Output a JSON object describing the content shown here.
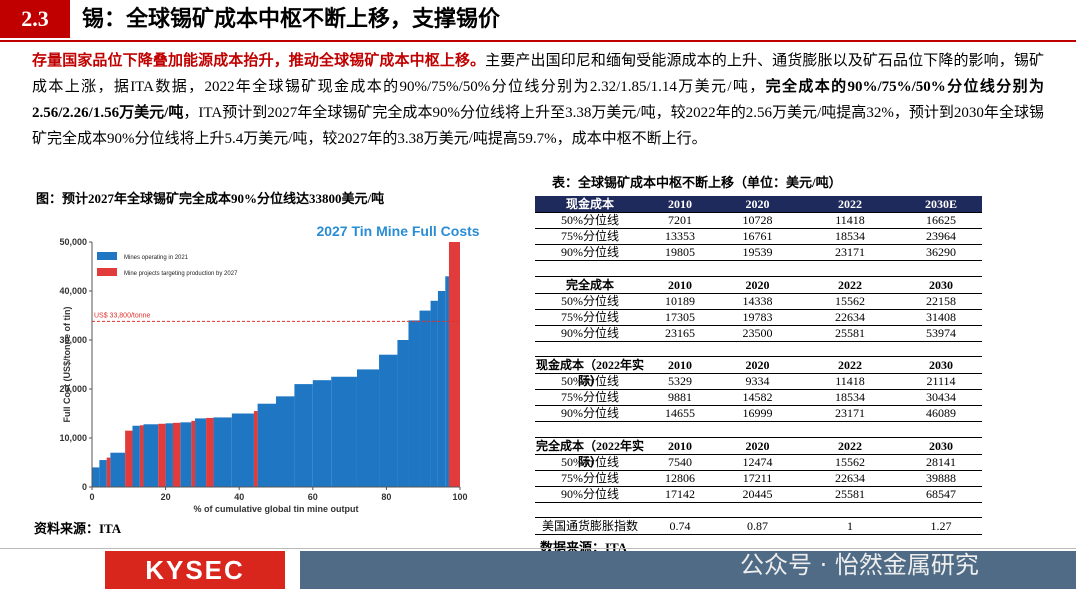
{
  "header": {
    "section": "2.3",
    "title": "锡：全球锡矿成本中枢不断上移，支撑锡价"
  },
  "paragraph": [
    {
      "text": "存量国家品位下降叠加能源成本抬升，推动全球锡矿成本中枢上移。",
      "style": "red-bold"
    },
    {
      "text": "主要产出国印尼和缅甸受能源成本的上升、通货膨胀以及矿石品位下降的影响，锡矿成本上涨，据ITA数据，2022年全球锡矿现金成本的90%/75%/50%分位线分别为2.32/1.85/1.14万美元/吨，",
      "style": "normal"
    },
    {
      "text": "完全成本的90%/75%/50%分位线分别为2.56/2.26/1.56万美元/吨",
      "style": "bold"
    },
    {
      "text": "，ITA预计到2027年全球锡矿完全成本90%分位线将上升至3.38万美元/吨，较2022年的2.56万美元/吨提高32%，预计到2030年全球锡矿完全成本90%分位线将上升5.4万美元/吨，较2027年的3.38万美元/吨提高59.7%，成本中枢不断上行。",
      "style": "normal"
    }
  ],
  "figure": {
    "caption": "图：预计2027年全球锡矿完全成本90%分位线达33800美元/吨",
    "source": "资料来源：ITA"
  },
  "chart_data": {
    "type": "bar",
    "title": "2027 Tin Mine Full Costs",
    "y_label": "Full Cost (US$/tonne of tin)",
    "x_label": "% of cumulative global tin mine output",
    "annotation": {
      "text": "US$ 33,800/tonne",
      "value": 33800,
      "color": "#e0302a"
    },
    "xlim": [
      0,
      100
    ],
    "xticks": [
      0,
      20,
      40,
      60,
      80,
      100
    ],
    "ylim": [
      0,
      50000
    ],
    "yticks": [
      0,
      {
        "value": 10000,
        "label": "10,000"
      },
      {
        "value": 20000,
        "label": "20,000"
      },
      {
        "value": 30000,
        "label": "30,000"
      },
      {
        "value": 40000,
        "label": "40,000"
      },
      {
        "value": 50000,
        "label": "50,000"
      }
    ],
    "series": [
      {
        "name": "Mines operating in 2021",
        "color": "#1f77c4",
        "x_start": [
          0,
          2,
          5,
          11,
          14,
          20,
          24,
          28,
          33,
          38,
          45,
          50,
          55,
          60,
          65,
          72,
          78,
          83,
          86,
          89,
          92,
          94,
          96
        ],
        "x_end": [
          2,
          4,
          9,
          13,
          18,
          22,
          27,
          31,
          38,
          44,
          50,
          55,
          60,
          65,
          72,
          78,
          83,
          86,
          89,
          92,
          94,
          96,
          97
        ],
        "values": [
          4000,
          5500,
          7000,
          12500,
          12800,
          13000,
          13200,
          14000,
          14200,
          15000,
          17000,
          18500,
          21000,
          21800,
          22500,
          24000,
          27000,
          30000,
          34000,
          36000,
          38000,
          40000,
          43000
        ]
      },
      {
        "name": "Mine projects targeting production by 2027",
        "color": "#e23b3b",
        "x_start": [
          4,
          9,
          13,
          18,
          22,
          27,
          31,
          44,
          97
        ],
        "x_end": [
          5,
          11,
          14,
          20,
          24,
          28,
          33,
          45,
          100
        ],
        "values": [
          6000,
          11500,
          12600,
          12900,
          13100,
          13500,
          14100,
          15500,
          50000
        ]
      }
    ]
  },
  "table": {
    "title": "表：全球锡矿成本中枢不断上移（单位：美元/吨）",
    "source": "数据来源：ITA",
    "sections": [
      {
        "header": [
          "现金成本",
          "2010",
          "2020",
          "2022",
          "2030E"
        ],
        "rows": [
          [
            "50%分位线",
            7201,
            10728,
            11418,
            16625
          ],
          [
            "75%分位线",
            13353,
            16761,
            18534,
            23964
          ],
          [
            "90%分位线",
            19805,
            19539,
            23171,
            36290
          ]
        ]
      },
      {
        "header": [
          "完全成本",
          "2010",
          "2020",
          "2022",
          "2030"
        ],
        "rows": [
          [
            "50%分位线",
            10189,
            14338,
            15562,
            22158
          ],
          [
            "75%分位线",
            17305,
            19783,
            22634,
            31408
          ],
          [
            "90%分位线",
            23165,
            23500,
            25581,
            53974
          ]
        ]
      },
      {
        "header": [
          "现金成本（2022年实际）",
          "2010",
          "2020",
          "2022",
          "2030"
        ],
        "rows": [
          [
            "50%分位线",
            5329,
            9334,
            11418,
            21114
          ],
          [
            "75%分位线",
            9881,
            14582,
            18534,
            30434
          ],
          [
            "90%分位线",
            14655,
            16999,
            23171,
            46089
          ]
        ]
      },
      {
        "header": [
          "完全成本（2022年实际）",
          "2010",
          "2020",
          "2022",
          "2030"
        ],
        "rows": [
          [
            "50%分位线",
            7540,
            12474,
            15562,
            28141
          ],
          [
            "75%分位线",
            12806,
            17211,
            22634,
            39888
          ],
          [
            "90%分位线",
            17142,
            20445,
            25581,
            68547
          ]
        ]
      }
    ],
    "index_row": [
      "美国通货膨胀指数",
      0.74,
      0.87,
      1,
      1.27
    ]
  },
  "footer": {
    "logo": "KYSEC",
    "watermark": "公众号 · 怡然金属研究"
  }
}
